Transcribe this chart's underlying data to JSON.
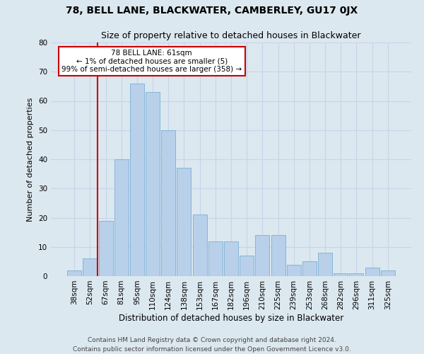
{
  "title1": "78, BELL LANE, BLACKWATER, CAMBERLEY, GU17 0JX",
  "title2": "Size of property relative to detached houses in Blackwater",
  "xlabel": "Distribution of detached houses by size in Blackwater",
  "ylabel": "Number of detached properties",
  "categories": [
    "38sqm",
    "52sqm",
    "67sqm",
    "81sqm",
    "95sqm",
    "110sqm",
    "124sqm",
    "138sqm",
    "153sqm",
    "167sqm",
    "182sqm",
    "196sqm",
    "210sqm",
    "225sqm",
    "239sqm",
    "253sqm",
    "268sqm",
    "282sqm",
    "296sqm",
    "311sqm",
    "325sqm"
  ],
  "values": [
    2,
    6,
    19,
    40,
    66,
    63,
    50,
    37,
    21,
    12,
    12,
    7,
    14,
    14,
    4,
    5,
    8,
    1,
    1,
    3,
    2
  ],
  "bar_color": "#b8d0ea",
  "bar_edge_color": "#7aafd4",
  "vline_index": 1.5,
  "vline_color": "#cc0000",
  "annotation_text": "78 BELL LANE: 61sqm\n← 1% of detached houses are smaller (5)\n99% of semi-detached houses are larger (358) →",
  "annotation_box_color": "#ffffff",
  "annotation_box_edge": "#cc0000",
  "ylim": [
    0,
    80
  ],
  "yticks": [
    0,
    10,
    20,
    30,
    40,
    50,
    60,
    70,
    80
  ],
  "grid_color": "#c8d4e8",
  "background_color": "#dce8f0",
  "footer": "Contains HM Land Registry data © Crown copyright and database right 2024.\nContains public sector information licensed under the Open Government Licence v3.0.",
  "title1_fontsize": 10,
  "title2_fontsize": 9,
  "xlabel_fontsize": 8.5,
  "ylabel_fontsize": 8,
  "tick_fontsize": 7.5,
  "annotation_fontsize": 7.5,
  "footer_fontsize": 6.5
}
